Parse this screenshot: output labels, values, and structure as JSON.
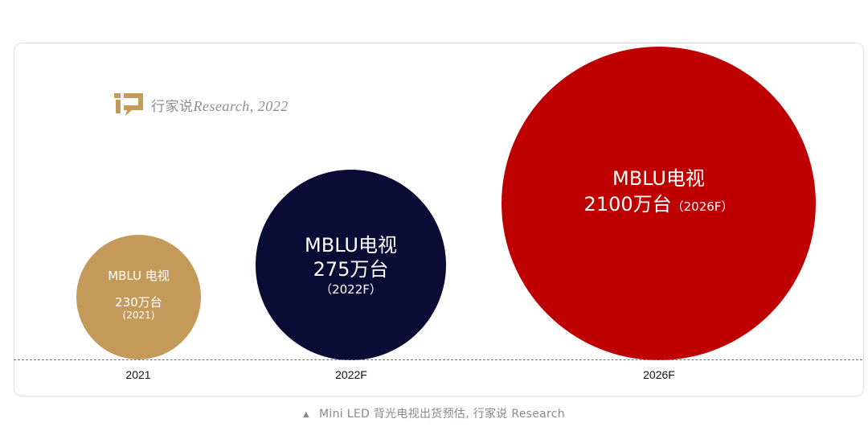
{
  "watermark": {
    "cn": "行家说",
    "en": "Research, 2022"
  },
  "chart_data": {
    "type": "bubble",
    "title": "",
    "unit": "万台",
    "categories": [
      "2021",
      "2022F",
      "2026F"
    ],
    "values": [
      230,
      275,
      2100
    ],
    "bubbles": [
      {
        "name": "MBLU 电视",
        "value_text": "230万台",
        "year_note": "(2021)",
        "color": "#c49a5a"
      },
      {
        "name": "MBLU电视",
        "value_text": "275万台",
        "year_note": "（2022F）",
        "color": "#0a0c35"
      },
      {
        "name": "MBLU电视",
        "value_text": "2100万台",
        "year_note": "（2026F）",
        "color": "#bf0000"
      }
    ]
  },
  "caption": {
    "icon": "triangle-up-icon",
    "text": "Mini LED 背光电视出货预估, 行家说 Research"
  }
}
